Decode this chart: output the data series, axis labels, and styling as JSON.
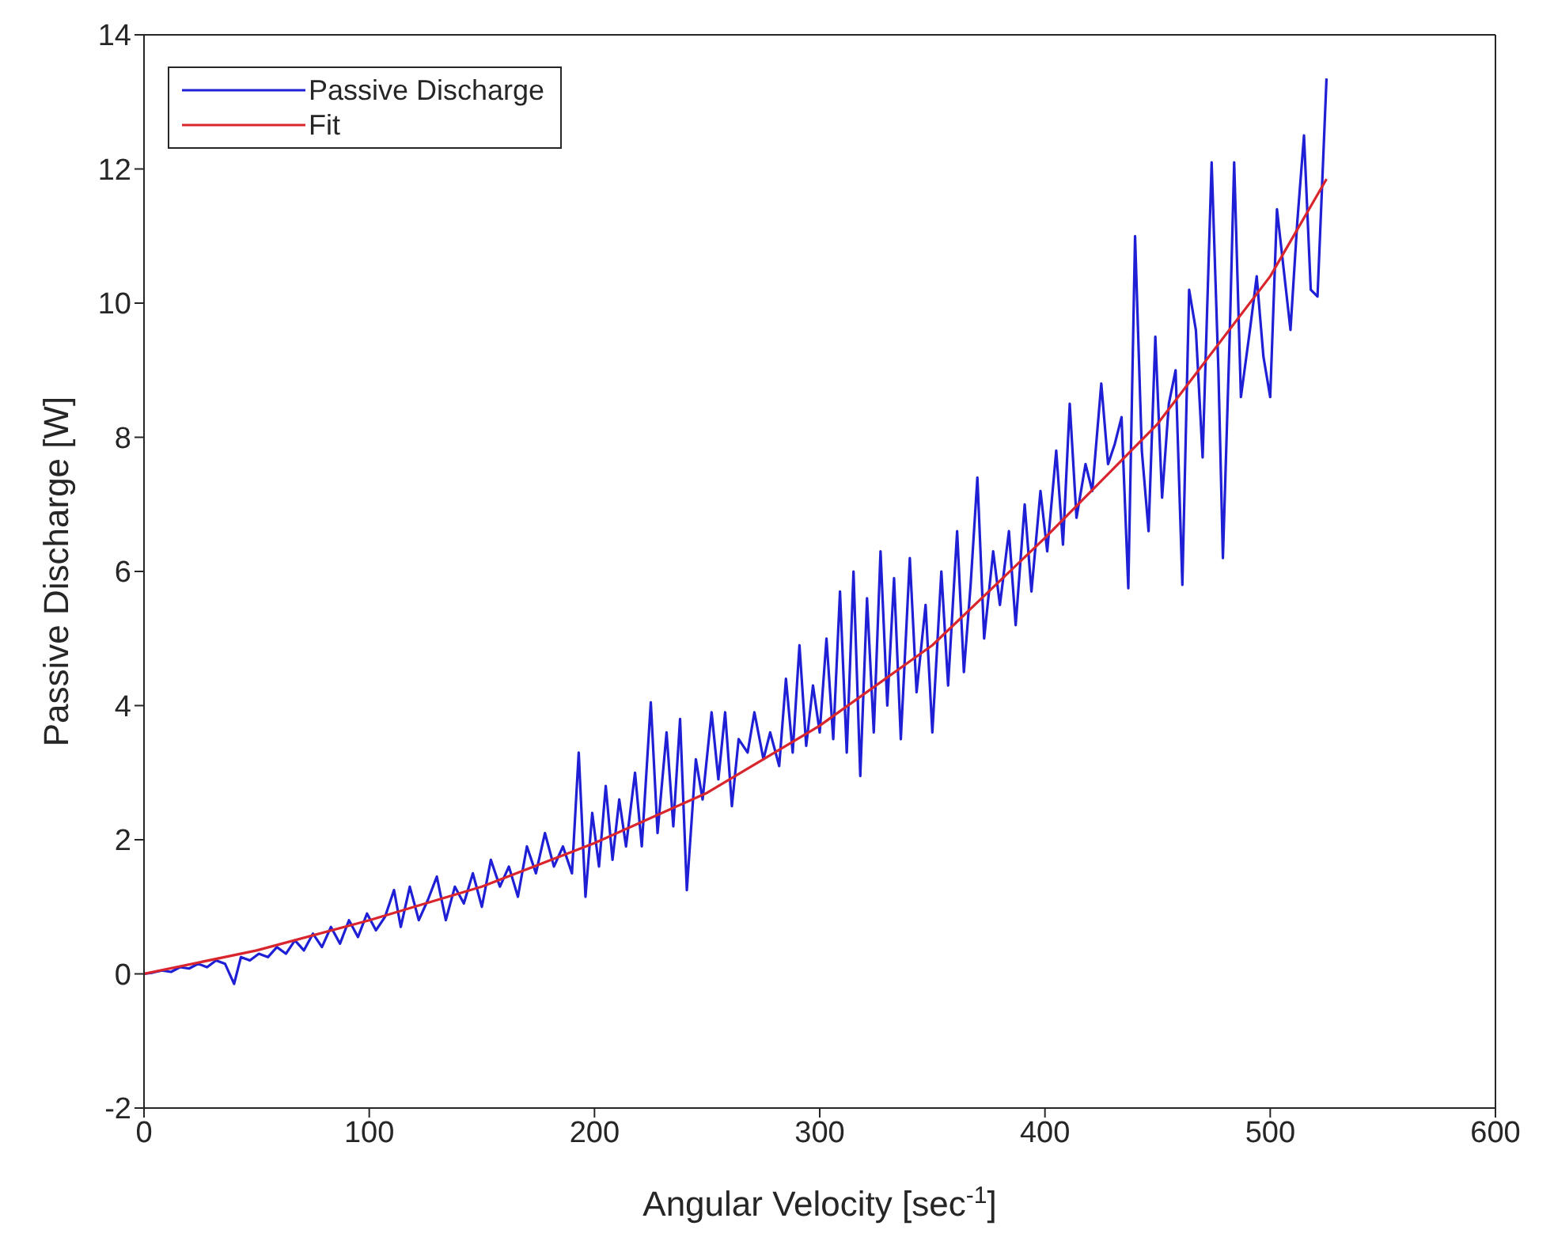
{
  "chart_data": {
    "type": "line",
    "xlabel": "Angular Velocity [sec$^{-1}$]",
    "ylabel": "Passive Discharge [W]",
    "xlim": [
      0,
      600
    ],
    "xticks": [
      0,
      100,
      200,
      300,
      400,
      500,
      600
    ],
    "ylim": [
      -2,
      14
    ],
    "yticks": [
      -2,
      0,
      2,
      4,
      6,
      8,
      10,
      12,
      14
    ],
    "legend": "top left",
    "marker": "none",
    "line_style": "solid",
    "series": [
      {
        "name": "Passive Discharge",
        "color": "#1f1fd6",
        "x": [
          0,
          4,
          8,
          12,
          16,
          20,
          24,
          28,
          32,
          36,
          40,
          43,
          47,
          51,
          55,
          59,
          63,
          67,
          71,
          75,
          79,
          83,
          87,
          91,
          95,
          99,
          103,
          107,
          111,
          114,
          118,
          122,
          126,
          130,
          134,
          138,
          142,
          146,
          150,
          154,
          158,
          162,
          166,
          170,
          174,
          178,
          182,
          186,
          190,
          193,
          196,
          199,
          202,
          205,
          208,
          211,
          214,
          218,
          221,
          225,
          228,
          232,
          235,
          238,
          241,
          245,
          248,
          252,
          255,
          258,
          261,
          264,
          268,
          271,
          275,
          278,
          282,
          285,
          288,
          291,
          294,
          297,
          300,
          303,
          306,
          309,
          312,
          315,
          318,
          321,
          324,
          327,
          330,
          333,
          336,
          340,
          343,
          347,
          350,
          354,
          357,
          361,
          364,
          367,
          370,
          373,
          377,
          380,
          384,
          387,
          391,
          394,
          398,
          401,
          405,
          408,
          411,
          414,
          418,
          421,
          425,
          428,
          431,
          434,
          437,
          440,
          443,
          446,
          449,
          452,
          455,
          458,
          461,
          464,
          467,
          470,
          474,
          477,
          479,
          482,
          484,
          487,
          491,
          494,
          497,
          500,
          503,
          506,
          509,
          512,
          515,
          518,
          521,
          525
        ],
        "values": [
          0,
          0.02,
          0.05,
          0.03,
          0.1,
          0.08,
          0.15,
          0.1,
          0.2,
          0.15,
          -0.15,
          0.25,
          0.2,
          0.3,
          0.25,
          0.4,
          0.3,
          0.5,
          0.35,
          0.6,
          0.4,
          0.7,
          0.45,
          0.8,
          0.55,
          0.9,
          0.65,
          0.85,
          1.25,
          0.7,
          1.3,
          0.8,
          1.1,
          1.45,
          0.8,
          1.3,
          1.05,
          1.5,
          1.0,
          1.7,
          1.3,
          1.6,
          1.15,
          1.9,
          1.5,
          2.1,
          1.6,
          1.9,
          1.5,
          3.3,
          1.15,
          2.4,
          1.6,
          2.8,
          1.7,
          2.6,
          1.9,
          3.0,
          1.9,
          4.05,
          2.1,
          3.6,
          2.2,
          3.8,
          1.25,
          3.2,
          2.6,
          3.9,
          2.9,
          3.9,
          2.5,
          3.5,
          3.3,
          3.9,
          3.2,
          3.6,
          3.1,
          4.4,
          3.3,
          4.9,
          3.4,
          4.3,
          3.6,
          5.0,
          3.5,
          5.7,
          3.3,
          6.0,
          2.95,
          5.6,
          3.6,
          6.3,
          4.0,
          5.9,
          3.5,
          6.2,
          4.2,
          5.5,
          3.6,
          6.0,
          4.3,
          6.6,
          4.5,
          5.8,
          7.4,
          5.0,
          6.3,
          5.5,
          6.6,
          5.2,
          7.0,
          5.7,
          7.2,
          6.3,
          7.8,
          6.4,
          8.5,
          6.8,
          7.6,
          7.2,
          8.8,
          7.6,
          7.9,
          8.3,
          5.75,
          11.0,
          7.8,
          6.6,
          9.5,
          7.1,
          8.5,
          9.0,
          5.8,
          10.2,
          9.6,
          7.7,
          12.1,
          9.0,
          6.2,
          9.5,
          12.1,
          8.6,
          9.6,
          10.4,
          9.2,
          8.6,
          11.4,
          10.5,
          9.6,
          11.2,
          12.5,
          10.2,
          10.1,
          13.35
        ]
      },
      {
        "name": "Fit",
        "color": "#d9262e",
        "x": [
          0,
          50,
          100,
          150,
          200,
          250,
          300,
          350,
          400,
          450,
          500,
          525
        ],
        "values": [
          0,
          0.35,
          0.8,
          1.3,
          1.95,
          2.7,
          3.7,
          4.9,
          6.5,
          8.2,
          10.4,
          11.85
        ]
      }
    ]
  }
}
